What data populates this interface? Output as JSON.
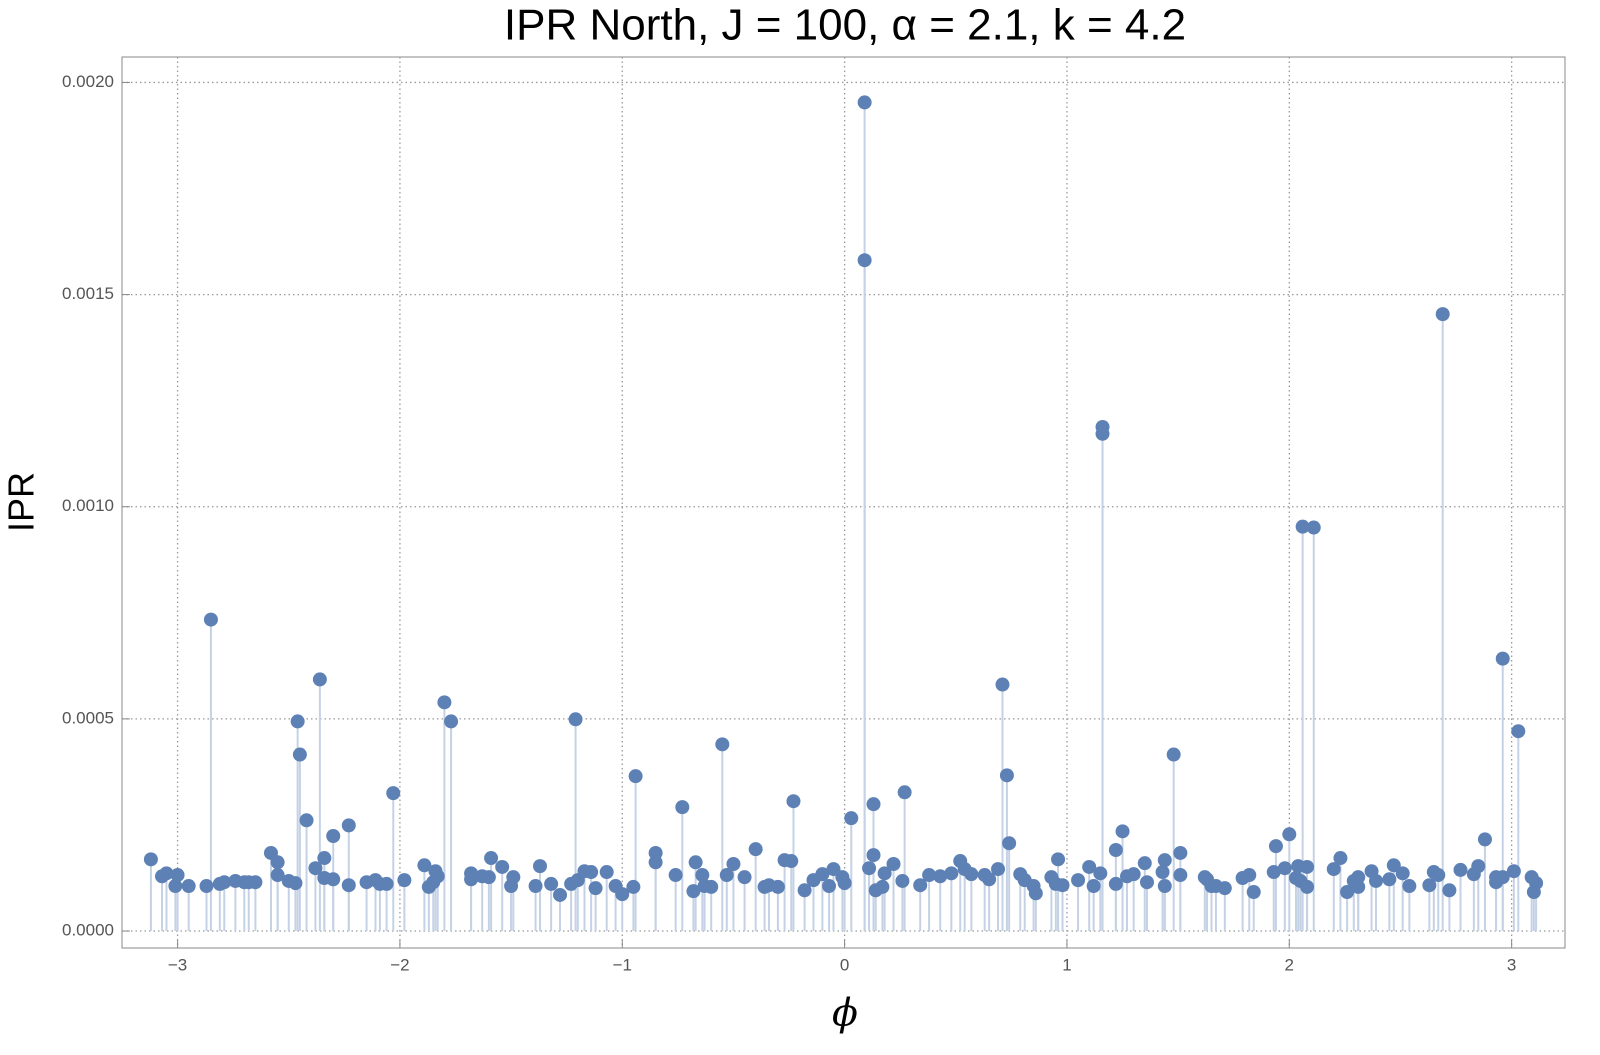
{
  "chart_data": {
    "type": "scatter",
    "title": "IPR North, J = 100, α = 2.1, k = 4.2",
    "xlabel": "ϕ",
    "ylabel": "IPR",
    "color": "#5e81b5",
    "stem_color": "#c5d2e6",
    "grid": true,
    "xlim": [
      -3.25,
      3.24
    ],
    "ylim": [
      -4e-05,
      0.00206
    ],
    "xticks": [
      {
        "value": -3,
        "label": "−3"
      },
      {
        "value": -2,
        "label": "−2"
      },
      {
        "value": -1,
        "label": "−1"
      },
      0,
      1,
      2,
      3
    ],
    "yticks": [
      {
        "value": 0,
        "label": "0.0000"
      },
      0.0005,
      {
        "value": 0.001,
        "label": "0.0010"
      },
      0.0015,
      {
        "value": 0.002,
        "label": "0.0020"
      }
    ],
    "x": [
      -3.12,
      -3.07,
      -3.05,
      -3.01,
      -3.0,
      -2.95,
      -2.87,
      -2.85,
      -2.81,
      -2.79,
      -2.74,
      -2.7,
      -2.68,
      -2.65,
      -2.58,
      -2.55,
      -2.55,
      -2.5,
      -2.47,
      -2.46,
      -2.45,
      -2.42,
      -2.38,
      -2.36,
      -2.34,
      -2.34,
      -2.3,
      -2.3,
      -2.23,
      -2.23,
      -2.15,
      -2.11,
      -2.09,
      -2.06,
      -2.03,
      -1.98,
      -1.89,
      -1.87,
      -1.85,
      -1.84,
      -1.83,
      -1.8,
      -1.77,
      -1.68,
      -1.68,
      -1.63,
      -1.6,
      -1.59,
      -1.54,
      -1.5,
      -1.49,
      -1.39,
      -1.37,
      -1.32,
      -1.28,
      -1.23,
      -1.21,
      -1.2,
      -1.17,
      -1.14,
      -1.12,
      -1.07,
      -1.03,
      -1.0,
      -0.95,
      -0.94,
      -0.85,
      -0.85,
      -0.76,
      -0.73,
      -0.68,
      -0.67,
      -0.64,
      -0.63,
      -0.6,
      -0.55,
      -0.53,
      -0.5,
      -0.45,
      -0.4,
      -0.36,
      -0.34,
      -0.3,
      -0.27,
      -0.24,
      -0.23,
      -0.18,
      -0.14,
      -0.1,
      -0.07,
      -0.05,
      -0.01,
      0.0,
      0.03,
      0.09,
      0.09,
      0.11,
      0.13,
      0.13,
      0.14,
      0.17,
      0.18,
      0.22,
      0.26,
      0.27,
      0.34,
      0.38,
      0.43,
      0.48,
      0.52,
      0.54,
      0.57,
      0.63,
      0.65,
      0.69,
      0.71,
      0.73,
      0.74,
      0.79,
      0.81,
      0.85,
      0.86,
      0.93,
      0.95,
      0.96,
      0.98,
      1.05,
      1.1,
      1.12,
      1.15,
      1.16,
      1.16,
      1.22,
      1.22,
      1.25,
      1.27,
      1.3,
      1.35,
      1.36,
      1.43,
      1.44,
      1.44,
      1.48,
      1.51,
      1.51,
      1.62,
      1.63,
      1.65,
      1.67,
      1.71,
      1.79,
      1.82,
      1.84,
      1.93,
      1.94,
      1.98,
      2.0,
      2.03,
      2.04,
      2.05,
      2.06,
      2.08,
      2.08,
      2.11,
      2.2,
      2.23,
      2.26,
      2.29,
      2.31,
      2.31,
      2.37,
      2.39,
      2.45,
      2.47,
      2.51,
      2.54,
      2.63,
      2.65,
      2.67,
      2.69,
      2.72,
      2.77,
      2.83,
      2.85,
      2.88,
      2.93,
      2.93,
      2.96,
      2.96,
      3.01,
      3.03,
      3.09,
      3.1,
      3.11
    ],
    "values": [
      0.000169,
      0.000129,
      0.000136,
      0.000106,
      0.000132,
      0.000106,
      0.000106,
      0.000734,
      0.000111,
      0.000115,
      0.000118,
      0.000115,
      0.000115,
      0.000115,
      0.000184,
      0.000162,
      0.000132,
      0.000118,
      0.000113,
      0.000494,
      0.000416,
      0.000261,
      0.000148,
      0.000593,
      0.000172,
      0.000125,
      0.000122,
      0.000224,
      0.000249,
      0.000108,
      0.000115,
      0.00012,
      0.000111,
      0.000111,
      0.000325,
      0.00012,
      0.000155,
      0.000104,
      0.000115,
      0.000141,
      0.000129,
      0.000539,
      0.000494,
      0.000136,
      0.000122,
      0.000129,
      0.000127,
      0.000172,
      0.000151,
      0.000106,
      0.000127,
      0.000106,
      0.000153,
      0.000111,
      8.5e-05,
      0.000111,
      0.000499,
      0.00012,
      0.000141,
      0.000139,
      0.000101,
      0.000139,
      0.000106,
      8.7e-05,
      0.000104,
      0.000365,
      0.000162,
      0.000184,
      0.000132,
      0.000292,
      9.4e-05,
      0.000162,
      0.000132,
      0.000106,
      0.000104,
      0.00044,
      0.000132,
      0.000158,
      0.000127,
      0.000193,
      0.000104,
      0.000108,
      0.000104,
      0.000167,
      0.000165,
      0.000306,
      9.6e-05,
      0.00012,
      0.000134,
      0.000106,
      0.000146,
      0.000127,
      0.000113,
      0.000266,
      0.001953,
      0.001581,
      0.000148,
      0.000179,
      0.000299,
      9.6e-05,
      0.000104,
      0.000136,
      0.000158,
      0.000118,
      0.000327,
      0.000108,
      0.000132,
      0.000129,
      0.000136,
      0.000165,
      0.000146,
      0.000134,
      0.000132,
      0.000122,
      0.000146,
      0.000581,
      0.000367,
      0.000207,
      0.000134,
      0.00012,
      0.000106,
      8.9e-05,
      0.000127,
      0.000111,
      0.000169,
      0.000108,
      0.00012,
      0.000151,
      0.000106,
      0.000136,
      0.001188,
      0.001172,
      0.000111,
      0.000191,
      0.000235,
      0.000129,
      0.000134,
      0.00016,
      0.000115,
      0.000139,
      0.000167,
      0.000106,
      0.000416,
      0.000184,
      0.000132,
      0.000127,
      0.000122,
      0.000106,
      0.000106,
      0.000101,
      0.000125,
      0.000132,
      9.2e-05,
      0.000139,
      0.0002,
      0.000148,
      0.000228,
      0.000125,
      0.000153,
      0.000118,
      0.000953,
      0.000151,
      0.000104,
      0.000951,
      0.000146,
      0.000172,
      9.2e-05,
      0.000118,
      0.000104,
      0.000127,
      0.000141,
      0.000118,
      0.000122,
      0.000155,
      0.000136,
      0.000106,
      0.000108,
      0.000139,
      0.000132,
      0.001454,
      9.6e-05,
      0.000144,
      0.000134,
      0.000153,
      0.000216,
      0.000127,
      0.000115,
      0.000642,
      0.000127,
      0.000141,
      0.000471,
      0.000127,
      9.2e-05,
      0.000113
    ]
  }
}
